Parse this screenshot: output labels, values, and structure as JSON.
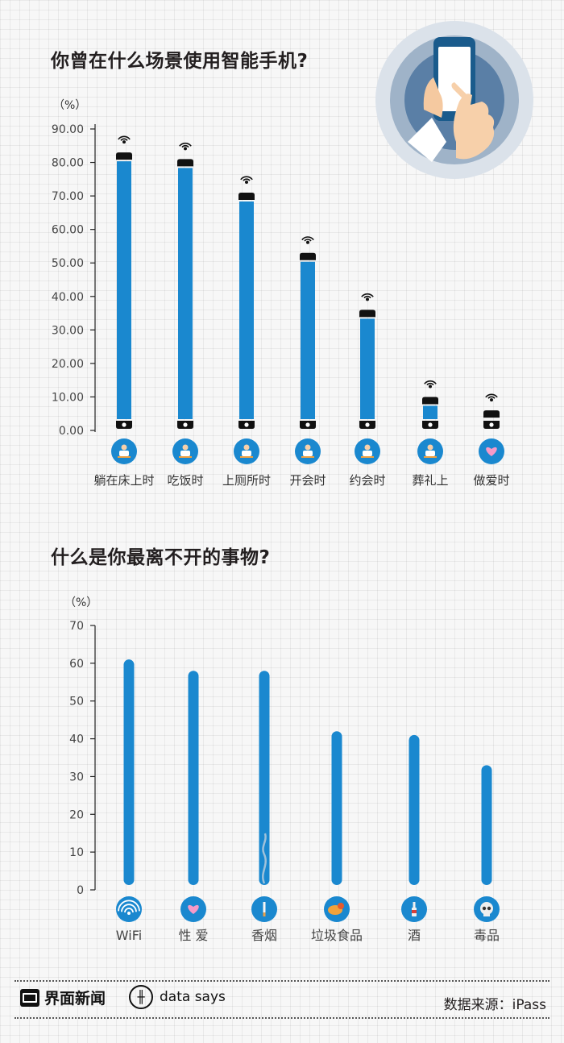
{
  "charts": {
    "scenes": {
      "title": "你曾在什么场景使用智能手机?",
      "unit": "（%）"
    },
    "things": {
      "title": "什么是你最离不开的事物?",
      "unit": "（%）"
    }
  },
  "chart_data": [
    {
      "type": "bar",
      "title": "你曾在什么场景使用智能手机?",
      "ylabel": "（%）",
      "ylim": [
        0,
        90
      ],
      "yticks": [
        "0.00",
        "10.00",
        "20.00",
        "30.00",
        "40.00",
        "50.00",
        "60.00",
        "70.00",
        "80.00",
        "90.00"
      ],
      "categories": [
        "躺在床上时",
        "吃饭时",
        "上厕所时",
        "开会时",
        "约会时",
        "葬礼上",
        "做爱时"
      ],
      "values": [
        83,
        81,
        71,
        53,
        36,
        10,
        6
      ],
      "icons": [
        "bed-icon",
        "eating-icon",
        "toilet-icon",
        "meeting-icon",
        "date-icon",
        "funeral-icon",
        "heart-icon"
      ],
      "bar_style": "phone-battery",
      "color": "#1a88cf"
    },
    {
      "type": "bar",
      "title": "什么是你最离不开的事物?",
      "ylabel": "（%）",
      "ylim": [
        0,
        70
      ],
      "yticks": [
        "0",
        "10",
        "20",
        "30",
        "40",
        "50",
        "60",
        "70"
      ],
      "categories": [
        "WiFi",
        "性 爱",
        "香烟",
        "垃圾食品",
        "酒",
        "毒品"
      ],
      "values": [
        61,
        58,
        58,
        42,
        41,
        33
      ],
      "icons": [
        "wifi-icon",
        "heart-icon",
        "cigarette-icon",
        "junk-food-icon",
        "wine-icon",
        "skull-icon"
      ],
      "color": "#1a88cf"
    }
  ],
  "footer": {
    "brand": "界面新闻",
    "datasays": "data says",
    "source": "数据来源：iPass"
  },
  "colors": {
    "bar": "#1a88cf",
    "icon_circle": "#1a88cf",
    "hero_ring": "#c8d2dd",
    "hero_inner": "#5a7fa6"
  }
}
